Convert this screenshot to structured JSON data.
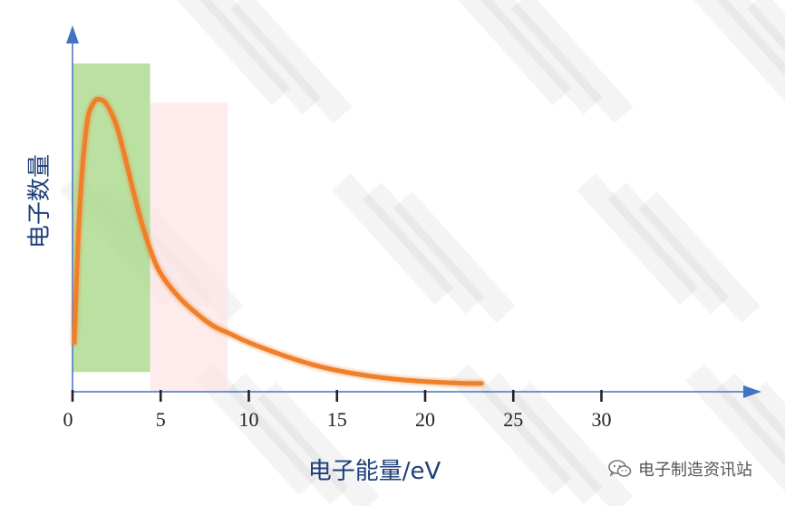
{
  "chart_data": {
    "type": "line",
    "title": "",
    "xlabel": "电子能量/eV",
    "ylabel": "电子数量",
    "xlim": [
      0,
      39
    ],
    "ylim": [
      0,
      1
    ],
    "xticks": [
      0,
      5,
      10,
      15,
      20,
      25,
      30
    ],
    "grid": false,
    "legend": "none",
    "series": [
      {
        "name": "",
        "color": "#f07f2a",
        "x": [
          0.1,
          0.4,
          0.8,
          1.2,
          1.6,
          2.0,
          2.5,
          3.0,
          3.5,
          4.0,
          4.5,
          5.0,
          6.0,
          7.0,
          8.0,
          9.0,
          10.0,
          12.0,
          14.0,
          16.0,
          18.0,
          20.0,
          22.0,
          23.2
        ],
        "y": [
          0.15,
          0.55,
          0.81,
          0.88,
          0.89,
          0.87,
          0.81,
          0.71,
          0.6,
          0.5,
          0.42,
          0.36,
          0.29,
          0.24,
          0.2,
          0.175,
          0.15,
          0.11,
          0.077,
          0.055,
          0.04,
          0.031,
          0.026,
          0.025
        ]
      }
    ],
    "regions": [
      {
        "x0": 0,
        "x1": 4.4,
        "y0": 0.06,
        "y1": 1.0,
        "color": "#a9d98a"
      },
      {
        "x0": 4.4,
        "x1": 8.8,
        "y0": 0.0,
        "y1": 0.88,
        "color": "#fde3e3"
      }
    ]
  },
  "credit": {
    "text": "电子制造资讯站",
    "icon": "wechat-icon"
  },
  "colors": {
    "axis": "#4472c4",
    "axis_title": "#1f3f7a",
    "tick_label": "#222222"
  }
}
